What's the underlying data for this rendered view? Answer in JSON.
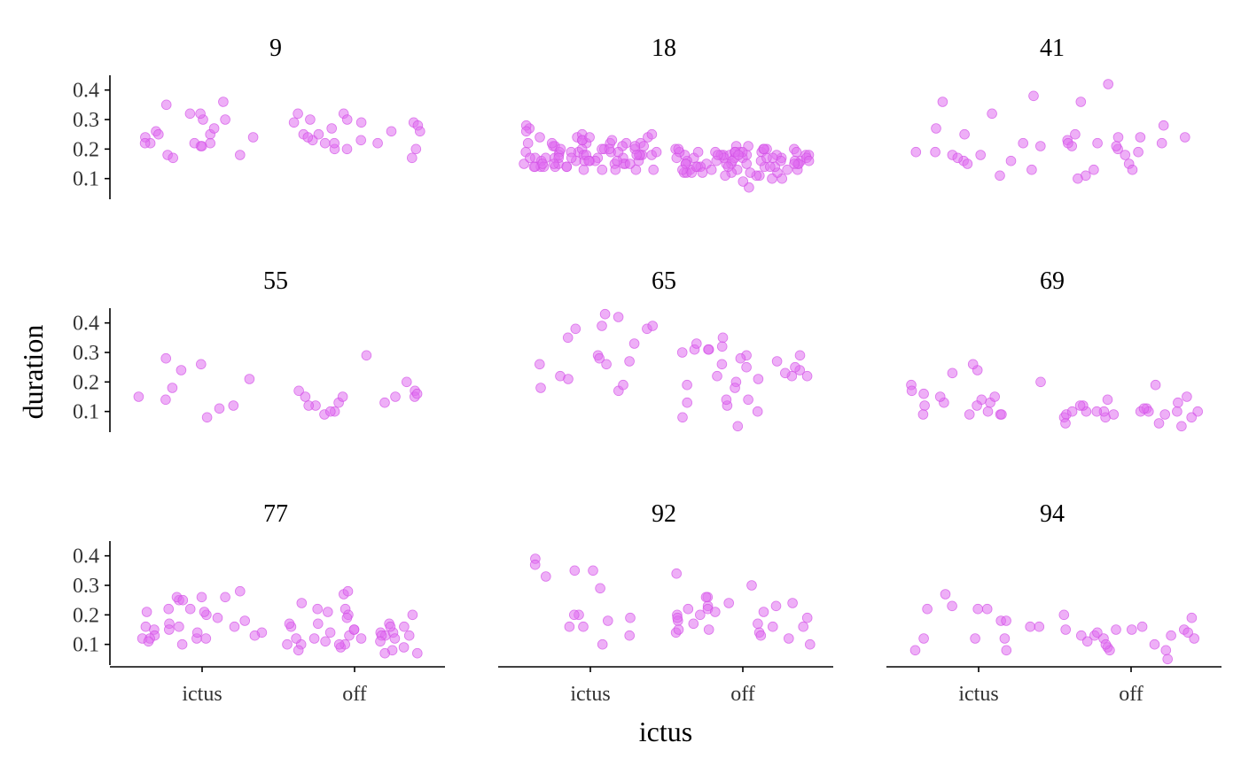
{
  "chart_data": {
    "type": "scatter",
    "xlabel": "ictus",
    "ylabel": "duration",
    "categories": [
      "ictus",
      "off"
    ],
    "yticks": [
      0.1,
      0.2,
      0.3,
      0.4
    ],
    "ylim": [
      0.03,
      0.45
    ],
    "grid": false,
    "color": "#e06ef0",
    "panels": [
      {
        "id": "9",
        "ictus": [
          0.21,
          0.25,
          0.22,
          0.18,
          0.22,
          0.3,
          0.24,
          0.24,
          0.27,
          0.32,
          0.17,
          0.18,
          0.36,
          0.22,
          0.21,
          0.35,
          0.3,
          0.26,
          0.22,
          0.32,
          0.25
        ],
        "off": [
          0.29,
          0.29,
          0.28,
          0.25,
          0.2,
          0.2,
          0.23,
          0.32,
          0.29,
          0.22,
          0.22,
          0.3,
          0.26,
          0.3,
          0.25,
          0.23,
          0.27,
          0.24,
          0.26,
          0.2,
          0.22,
          0.32,
          0.17
        ]
      },
      {
        "id": "18",
        "ictus": [
          0.14,
          0.18,
          0.22,
          0.17,
          0.2,
          0.24,
          0.15,
          0.19,
          0.16,
          0.21,
          0.13,
          0.17,
          0.27,
          0.19,
          0.15,
          0.22,
          0.18,
          0.14,
          0.2,
          0.16,
          0.23,
          0.13,
          0.18,
          0.25,
          0.15,
          0.21,
          0.17,
          0.14,
          0.19,
          0.22,
          0.16,
          0.13,
          0.24,
          0.18,
          0.15,
          0.2,
          0.17,
          0.28,
          0.14,
          0.19,
          0.22,
          0.16,
          0.13,
          0.21,
          0.18,
          0.25,
          0.15,
          0.17,
          0.2,
          0.23,
          0.14,
          0.19,
          0.16,
          0.22,
          0.13,
          0.18,
          0.24,
          0.15,
          0.21,
          0.17,
          0.26,
          0.14,
          0.19,
          0.16,
          0.23,
          0.18,
          0.15,
          0.2,
          0.17,
          0.22,
          0.14,
          0.19,
          0.16,
          0.21,
          0.18,
          0.15,
          0.24,
          0.17,
          0.2,
          0.16
        ],
        "off": [
          0.12,
          0.18,
          0.15,
          0.19,
          0.1,
          0.17,
          0.14,
          0.2,
          0.11,
          0.16,
          0.18,
          0.13,
          0.19,
          0.15,
          0.17,
          0.12,
          0.21,
          0.14,
          0.18,
          0.16,
          0.1,
          0.19,
          0.13,
          0.17,
          0.15,
          0.2,
          0.12,
          0.18,
          0.14,
          0.16,
          0.19,
          0.11,
          0.17,
          0.15,
          0.21,
          0.13,
          0.18,
          0.16,
          0.12,
          0.19,
          0.14,
          0.17,
          0.15,
          0.2,
          0.13,
          0.18,
          0.16,
          0.12,
          0.19,
          0.14,
          0.17,
          0.15,
          0.07,
          0.18,
          0.16,
          0.13,
          0.19,
          0.15,
          0.17,
          0.12,
          0.2,
          0.14,
          0.18,
          0.16,
          0.09,
          0.19,
          0.15,
          0.17,
          0.13,
          0.11,
          0.18,
          0.16,
          0.2,
          0.14,
          0.17,
          0.19,
          0.12,
          0.15,
          0.18,
          0.2
        ]
      },
      {
        "id": "41",
        "ictus": [
          0.21,
          0.18,
          0.19,
          0.16,
          0.27,
          0.11,
          0.36,
          0.16,
          0.18,
          0.38,
          0.32,
          0.25,
          0.22,
          0.19,
          0.17,
          0.15,
          0.13
        ],
        "off": [
          0.24,
          0.25,
          0.11,
          0.15,
          0.22,
          0.2,
          0.13,
          0.42,
          0.23,
          0.21,
          0.28,
          0.18,
          0.19,
          0.24,
          0.1,
          0.24,
          0.13,
          0.21,
          0.22,
          0.36,
          0.22
        ]
      },
      {
        "id": "55",
        "ictus": [
          0.21,
          0.15,
          0.08,
          0.18,
          0.24,
          0.28,
          0.12,
          0.26,
          0.14,
          0.11
        ],
        "off": [
          0.2,
          0.17,
          0.13,
          0.15,
          0.15,
          0.15,
          0.17,
          0.12,
          0.15,
          0.13,
          0.29,
          0.16,
          0.09,
          0.1,
          0.1,
          0.12
        ]
      },
      {
        "id": "65",
        "ictus": [
          0.38,
          0.26,
          0.27,
          0.42,
          0.22,
          0.39,
          0.18,
          0.17,
          0.39,
          0.43,
          0.35,
          0.21,
          0.29,
          0.28,
          0.26,
          0.38,
          0.33,
          0.19
        ],
        "off": [
          0.29,
          0.25,
          0.1,
          0.12,
          0.13,
          0.31,
          0.14,
          0.24,
          0.27,
          0.29,
          0.2,
          0.22,
          0.18,
          0.19,
          0.25,
          0.26,
          0.31,
          0.31,
          0.3,
          0.35,
          0.32,
          0.22,
          0.23,
          0.21,
          0.14,
          0.08,
          0.05,
          0.33,
          0.28,
          0.22
        ]
      },
      {
        "id": "69",
        "ictus": [
          0.13,
          0.14,
          0.1,
          0.15,
          0.13,
          0.09,
          0.24,
          0.16,
          0.19,
          0.12,
          0.26,
          0.17,
          0.15,
          0.12,
          0.09,
          0.23,
          0.09,
          0.09,
          0.2
        ],
        "off": [
          0.05,
          0.1,
          0.08,
          0.1,
          0.1,
          0.13,
          0.09,
          0.1,
          0.15,
          0.09,
          0.08,
          0.11,
          0.1,
          0.1,
          0.09,
          0.1,
          0.08,
          0.11,
          0.12,
          0.19,
          0.06,
          0.06,
          0.1,
          0.12,
          0.14
        ]
      },
      {
        "id": "77",
        "ictus": [
          0.12,
          0.17,
          0.26,
          0.2,
          0.12,
          0.14,
          0.21,
          0.1,
          0.16,
          0.15,
          0.13,
          0.25,
          0.12,
          0.16,
          0.11,
          0.22,
          0.26,
          0.18,
          0.12,
          0.21,
          0.13,
          0.26,
          0.25,
          0.16,
          0.14,
          0.22,
          0.28,
          0.15,
          0.19
        ],
        "off": [
          0.22,
          0.13,
          0.09,
          0.24,
          0.15,
          0.27,
          0.22,
          0.08,
          0.14,
          0.12,
          0.13,
          0.1,
          0.2,
          0.17,
          0.12,
          0.09,
          0.11,
          0.1,
          0.28,
          0.07,
          0.14,
          0.16,
          0.15,
          0.19,
          0.12,
          0.17,
          0.14,
          0.1,
          0.13,
          0.16,
          0.08,
          0.07,
          0.12,
          0.2,
          0.17,
          0.21,
          0.1,
          0.13,
          0.11,
          0.16
        ]
      },
      {
        "id": "92",
        "ictus": [
          0.2,
          0.35,
          0.13,
          0.33,
          0.19,
          0.29,
          0.1,
          0.16,
          0.18,
          0.39,
          0.16,
          0.2,
          0.37,
          0.35
        ],
        "off": [
          0.26,
          0.14,
          0.19,
          0.14,
          0.15,
          0.23,
          0.16,
          0.22,
          0.16,
          0.13,
          0.24,
          0.12,
          0.22,
          0.17,
          0.2,
          0.23,
          0.24,
          0.21,
          0.34,
          0.18,
          0.2,
          0.21,
          0.1,
          0.19,
          0.15,
          0.26,
          0.3,
          0.17
        ]
      },
      {
        "id": "94",
        "ictus": [
          0.22,
          0.27,
          0.12,
          0.12,
          0.22,
          0.08,
          0.22,
          0.08,
          0.12,
          0.16,
          0.23,
          0.16,
          0.18,
          0.18
        ],
        "off": [
          0.15,
          0.13,
          0.09,
          0.15,
          0.08,
          0.16,
          0.05,
          0.12,
          0.15,
          0.13,
          0.11,
          0.1,
          0.12,
          0.13,
          0.08,
          0.15,
          0.14,
          0.1,
          0.14,
          0.19,
          0.2
        ]
      }
    ]
  }
}
